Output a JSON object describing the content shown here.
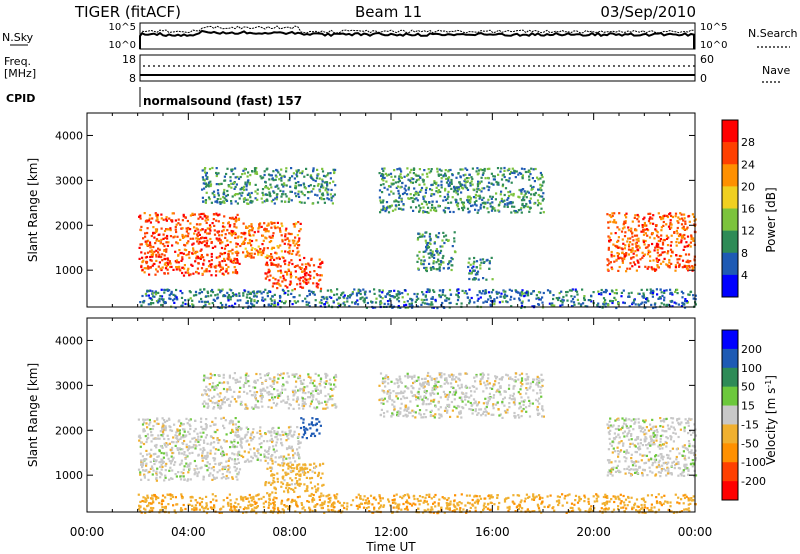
{
  "header": {
    "title": "TIGER (fitACF)",
    "beam": "Beam 11",
    "date": "03/Sep/2010"
  },
  "strips": {
    "nsky": {
      "label": "N.Sky",
      "tick_top": "10^5",
      "tick_bottom": "10^0"
    },
    "nsearch": {
      "label": "N.Search",
      "tick_top": "10^5",
      "tick_bottom": "10^0"
    },
    "freq": {
      "label_line1": "Freq.",
      "label_line2": "[MHz]",
      "tick_top": "18",
      "tick_bottom": "8"
    },
    "nave": {
      "label": "Nave",
      "tick_top": "60",
      "tick_bottom": "0"
    },
    "cpid": {
      "label": "CPID",
      "value": "normalsound (fast) 157"
    }
  },
  "x_axis": {
    "label": "Time UT",
    "ticks": [
      "00:00",
      "04:00",
      "08:00",
      "12:00",
      "16:00",
      "20:00",
      "00:00"
    ],
    "range_hours": [
      0,
      24
    ]
  },
  "chart_data": [
    {
      "type": "heatmap",
      "panel": "power",
      "ylabel": "Slant Range [km]",
      "yticks": [
        "1000",
        "2000",
        "3000",
        "4000"
      ],
      "ylim": [
        180,
        4500
      ],
      "xlim": [
        0,
        24
      ],
      "colorbar": {
        "label": "Power [dB]",
        "ticks": [
          "4",
          "8",
          "12",
          "16",
          "20",
          "24",
          "28"
        ],
        "colors": [
          "#0000ff",
          "#1e5ab4",
          "#2e8b57",
          "#7cc33c",
          "#f0d020",
          "#ff9000",
          "#ff4000",
          "#ff0000"
        ]
      },
      "regions": [
        {
          "t": [
            2.0,
            6.0
          ],
          "r": [
            900,
            2300
          ],
          "level": 26
        },
        {
          "t": [
            6.0,
            8.4
          ],
          "r": [
            1300,
            2100
          ],
          "level": 24
        },
        {
          "t": [
            7.0,
            9.3
          ],
          "r": [
            600,
            1300
          ],
          "level": 27
        },
        {
          "t": [
            4.5,
            9.8
          ],
          "r": [
            2500,
            3300
          ],
          "level": 10
        },
        {
          "t": [
            11.5,
            18.0
          ],
          "r": [
            2300,
            3300
          ],
          "level": 10
        },
        {
          "t": [
            13.0,
            14.5
          ],
          "r": [
            1000,
            1900
          ],
          "level": 10
        },
        {
          "t": [
            15.0,
            16.0
          ],
          "r": [
            800,
            1300
          ],
          "level": 8
        },
        {
          "t": [
            20.5,
            24.0
          ],
          "r": [
            1000,
            2300
          ],
          "level": 25
        },
        {
          "t": [
            2.0,
            24.0
          ],
          "r": [
            180,
            600
          ],
          "level": 8
        }
      ]
    },
    {
      "type": "heatmap",
      "panel": "velocity",
      "ylabel": "Slant Range [km]",
      "yticks": [
        "1000",
        "2000",
        "3000",
        "4000"
      ],
      "ylim": [
        180,
        4500
      ],
      "xlim": [
        0,
        24
      ],
      "colorbar": {
        "label": "Velocity [m s^-1]",
        "ticks": [
          "200",
          "100",
          "50",
          "15",
          "-15",
          "-50",
          "-100",
          "-200"
        ],
        "colors": [
          "#0000ff",
          "#1e5ab4",
          "#2e8b57",
          "#6cc83c",
          "#c8c8c8",
          "#f0b030",
          "#ff9000",
          "#ff4000",
          "#ff0000"
        ]
      },
      "regions": [
        {
          "t": [
            2.0,
            6.0
          ],
          "r": [
            900,
            2300
          ],
          "level": 0
        },
        {
          "t": [
            6.0,
            8.4
          ],
          "r": [
            1300,
            2100
          ],
          "level": 0
        },
        {
          "t": [
            7.0,
            9.3
          ],
          "r": [
            600,
            1300
          ],
          "level": -30
        },
        {
          "t": [
            4.5,
            9.8
          ],
          "r": [
            2500,
            3300
          ],
          "level": 0
        },
        {
          "t": [
            11.5,
            18.0
          ],
          "r": [
            2300,
            3300
          ],
          "level": 0
        },
        {
          "t": [
            8.4,
            9.2
          ],
          "r": [
            1850,
            2300
          ],
          "level": 150
        },
        {
          "t": [
            20.5,
            24.0
          ],
          "r": [
            1000,
            2300
          ],
          "level": 0
        },
        {
          "t": [
            2.0,
            24.0
          ],
          "r": [
            180,
            600
          ],
          "level": -40
        }
      ]
    }
  ]
}
